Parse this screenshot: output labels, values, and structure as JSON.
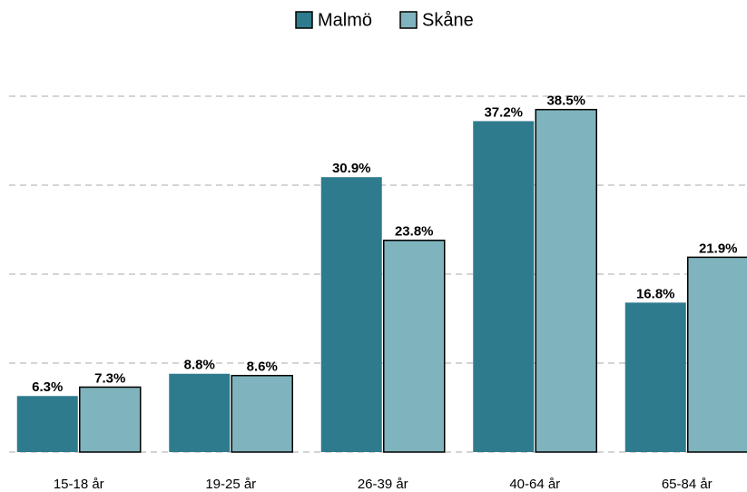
{
  "chart_data": {
    "type": "bar",
    "categories": [
      "15-18 år",
      "19-25 år",
      "26-39 år",
      "40-64 år",
      "65-84 år"
    ],
    "series": [
      {
        "name": "Malmö",
        "color": "#2e7b8e",
        "values": [
          6.3,
          8.8,
          30.9,
          37.2,
          16.8
        ],
        "value_labels": [
          "6.3%",
          "8.8%",
          "30.9%",
          "37.2%",
          "16.8%"
        ]
      },
      {
        "name": "Skåne",
        "color": "#7fb3bd",
        "values": [
          7.3,
          8.6,
          23.8,
          38.5,
          21.9
        ],
        "value_labels": [
          "7.3%",
          "8.6%",
          "23.8%",
          "38.5%",
          "21.9%"
        ]
      }
    ],
    "ylim": [
      0,
      40
    ],
    "yticks": [
      0,
      10,
      20,
      30,
      40
    ],
    "grid": true,
    "legend": "top"
  }
}
